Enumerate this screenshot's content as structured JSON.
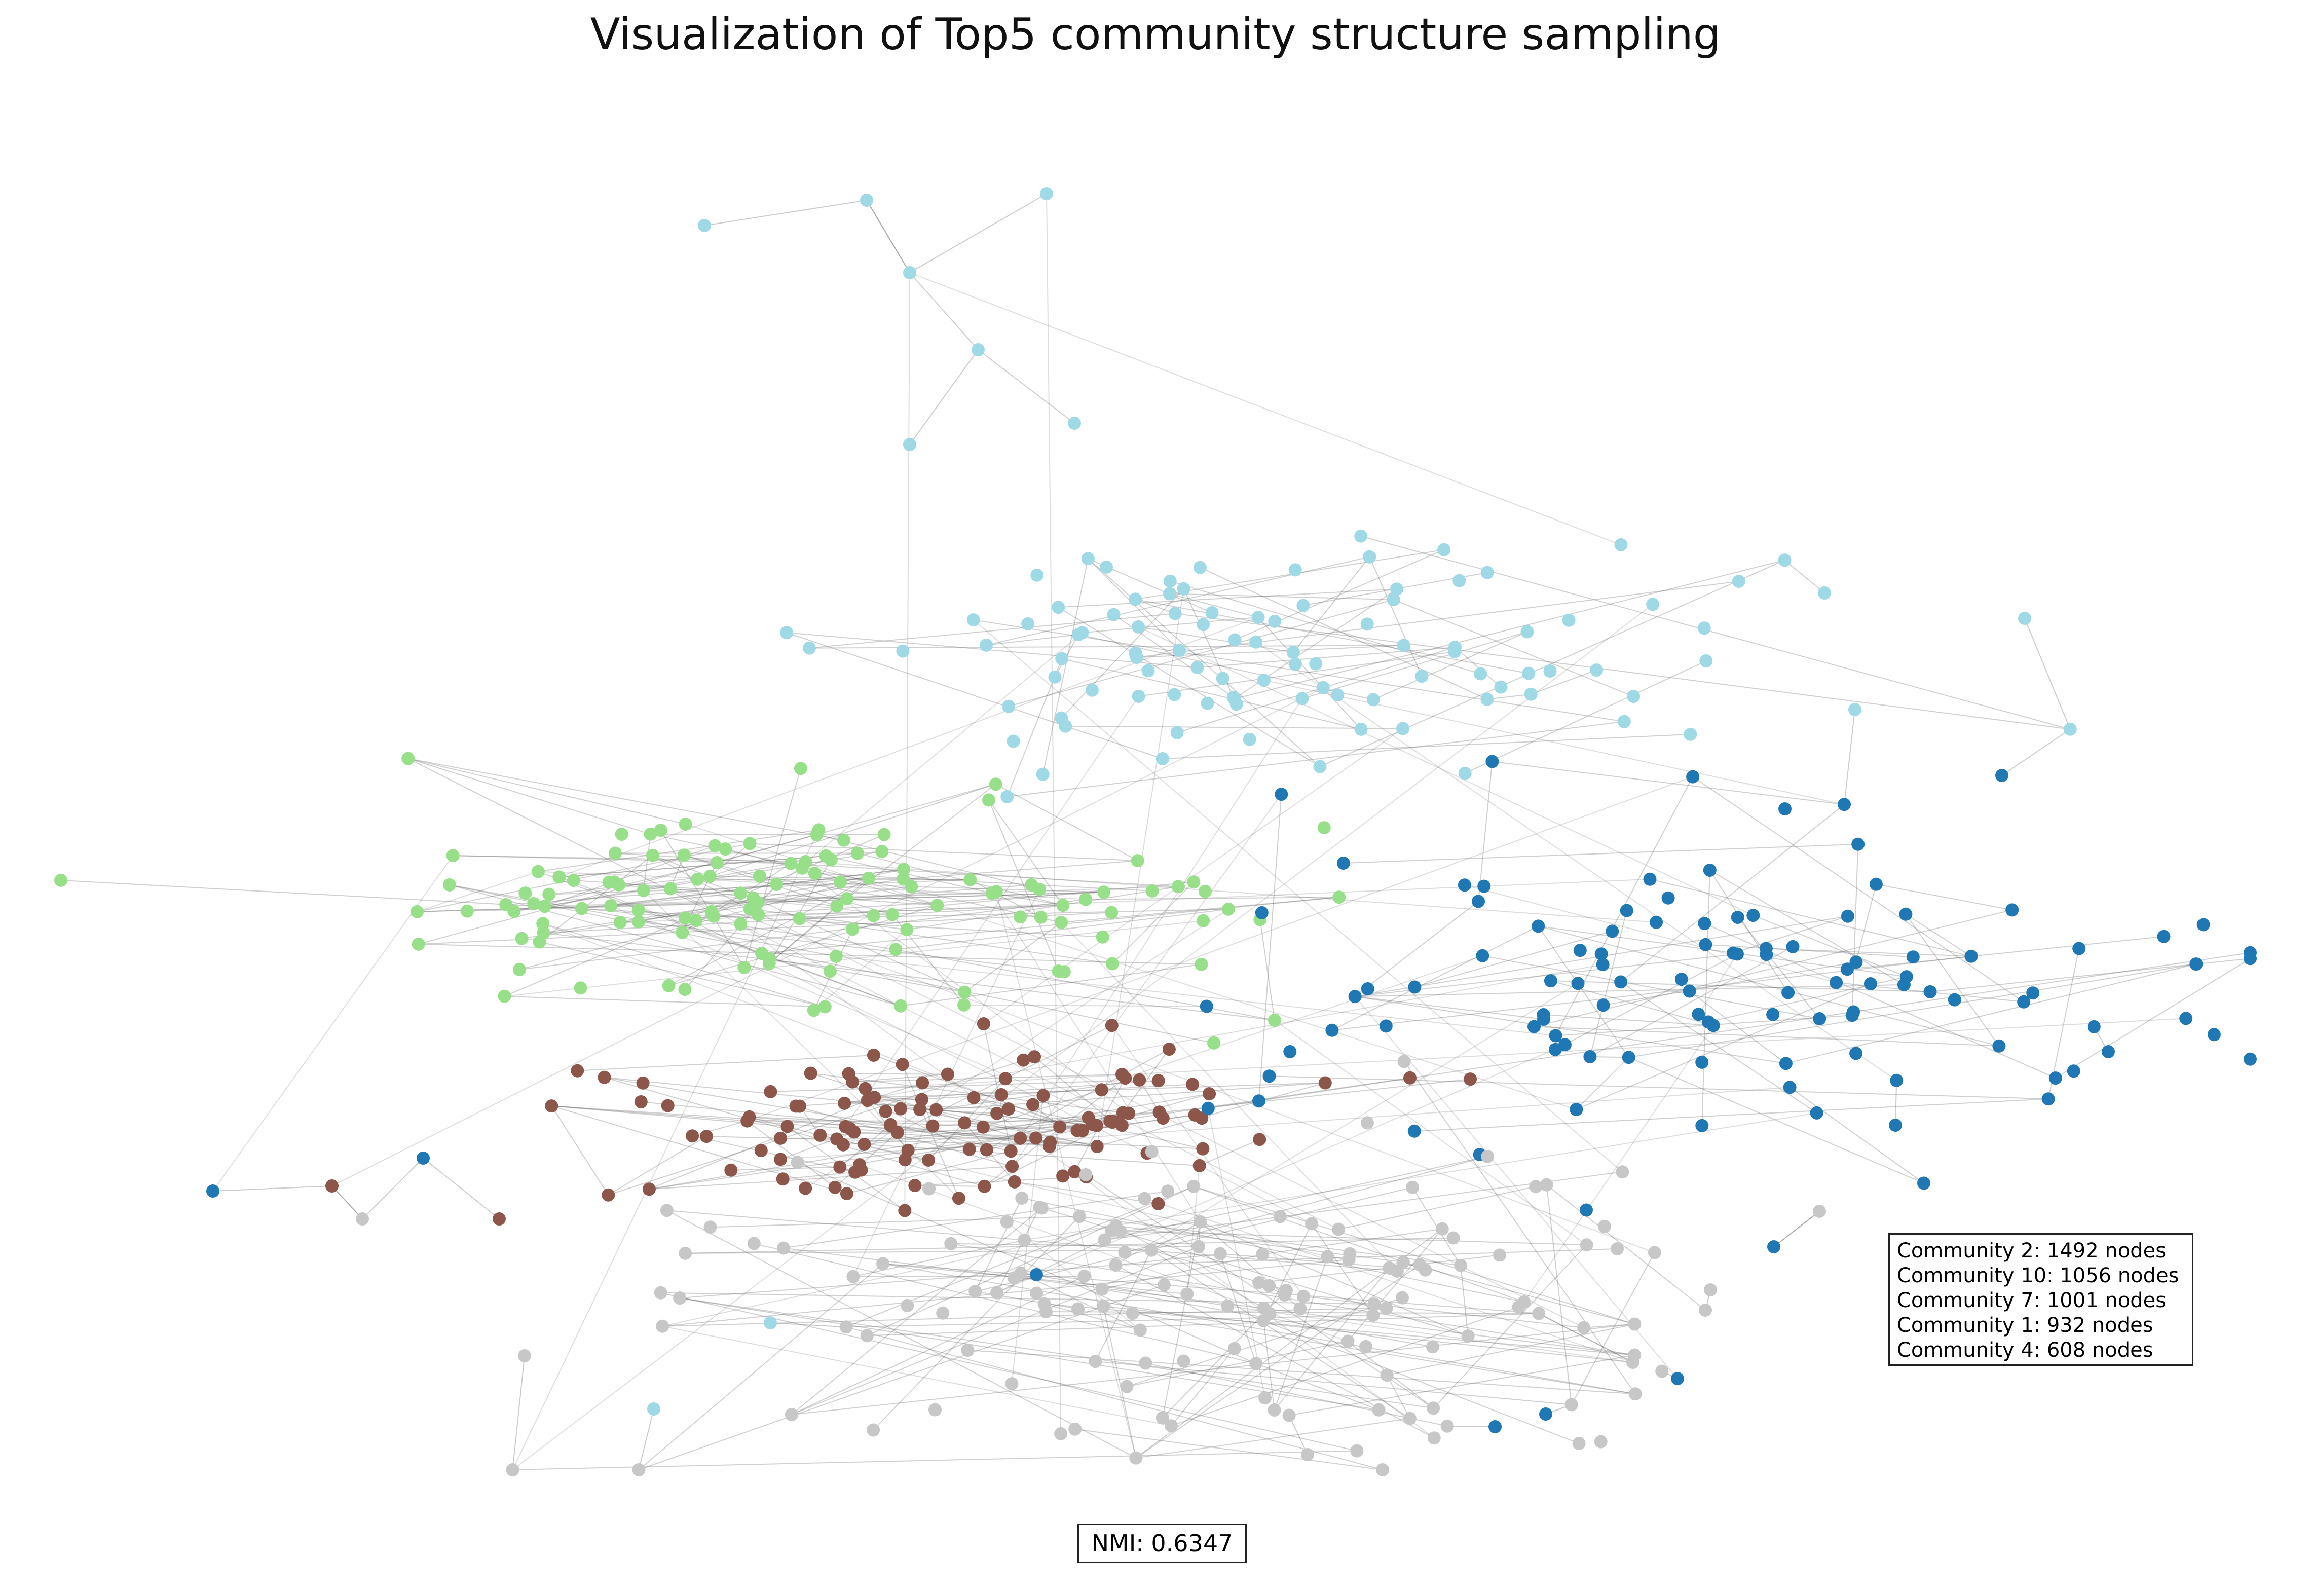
{
  "title": "Visualization of Top5 community structure sampling",
  "legend": [
    "Community 2: 1492 nodes",
    "Community 10: 1056 nodes",
    "Community 7: 1001 nodes",
    "Community 1: 932 nodes",
    "Community 4: 608 nodes"
  ],
  "nmi_label": "NMI: 0.6347",
  "colors": {
    "community_cyan": "#9ed9e5",
    "community_blue": "#1f77b4",
    "community_green": "#98df8a",
    "community_brown": "#8c564b",
    "community_gray": "#c7c7c7",
    "edge": "#555555"
  }
}
